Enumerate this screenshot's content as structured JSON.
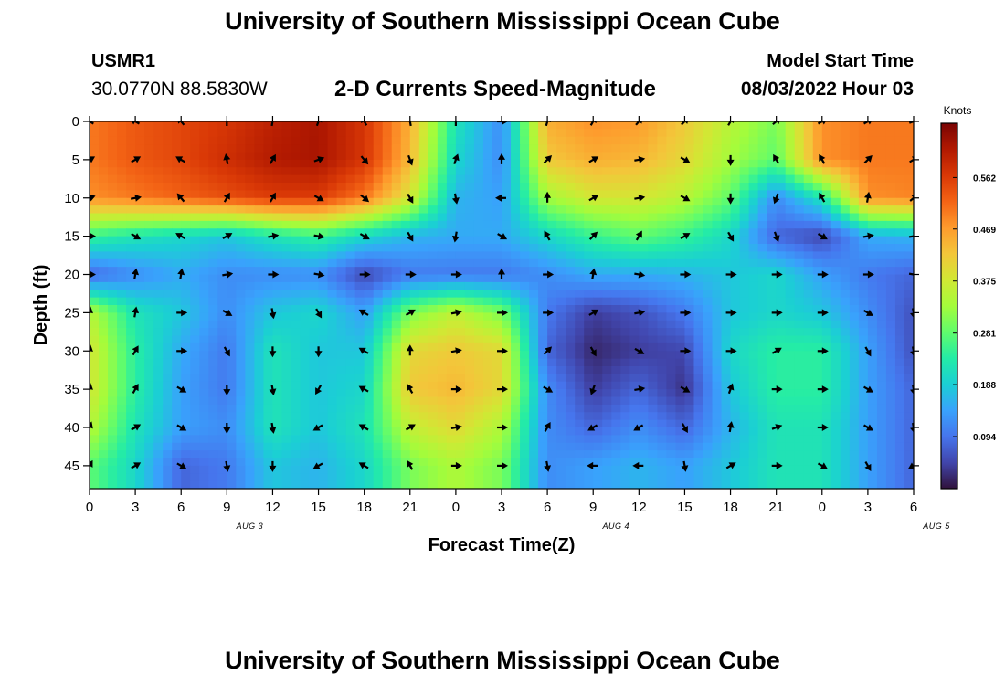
{
  "header": {
    "title": "University of Southern Mississippi Ocean Cube",
    "station_id": "USMR1",
    "coordinates": "30.0770N  88.5830W",
    "product": "2-D Currents Speed-Magnitude",
    "model_start_label": "Model Start Time",
    "model_start_value": "08/03/2022 Hour 03"
  },
  "footer": {
    "title": "University of Southern Mississippi Ocean Cube"
  },
  "chart_data": {
    "type": "heatmap",
    "xlabel": "Forecast Time(Z)",
    "ylabel": "Depth (ft)",
    "x_tick_labels": [
      "0",
      "3",
      "6",
      "9",
      "12",
      "15",
      "18",
      "21",
      "0",
      "3",
      "6",
      "9",
      "12",
      "15",
      "18",
      "21",
      "0",
      "3",
      "6"
    ],
    "x_day_labels": [
      {
        "label": "AUG 3",
        "tick_index": 3.5
      },
      {
        "label": "AUG 4",
        "tick_index": 11.5
      },
      {
        "label": "AUG 5",
        "tick_index": 18.5
      }
    ],
    "xlim": [
      0,
      18
    ],
    "y_ticks": [
      0,
      5,
      10,
      15,
      20,
      25,
      30,
      35,
      40,
      45
    ],
    "ylim": [
      0,
      48
    ],
    "y_inverted": true,
    "colorbar": {
      "title": "Knots",
      "ticks": [
        "0.094",
        "0.188",
        "0.281",
        "0.375",
        "0.469",
        "0.562"
      ],
      "range": [
        0,
        0.66
      ],
      "colors": [
        "#30123b",
        "#4145ab",
        "#4675ed",
        "#39a2fc",
        "#1bcfd4",
        "#24eca6",
        "#61fc6c",
        "#a4fc3b",
        "#d1e834",
        "#f3c63a",
        "#fe9b2d",
        "#f36315",
        "#d93806",
        "#b11901",
        "#7a0403"
      ]
    },
    "speed_grid_note": "rows = depth 0..45 ft step 5; columns = forecast steps 0..18 (3-hour steps)",
    "depths": [
      0,
      5,
      10,
      15,
      20,
      25,
      30,
      35,
      40,
      45
    ],
    "speed": [
      [
        0.5,
        0.53,
        0.55,
        0.57,
        0.6,
        0.62,
        0.57,
        0.45,
        0.22,
        0.12,
        0.45,
        0.48,
        0.47,
        0.42,
        0.35,
        0.3,
        0.48,
        0.5,
        0.5
      ],
      [
        0.5,
        0.53,
        0.55,
        0.58,
        0.61,
        0.62,
        0.57,
        0.44,
        0.2,
        0.12,
        0.42,
        0.45,
        0.44,
        0.4,
        0.33,
        0.28,
        0.48,
        0.5,
        0.5
      ],
      [
        0.48,
        0.5,
        0.52,
        0.54,
        0.56,
        0.56,
        0.5,
        0.38,
        0.16,
        0.14,
        0.33,
        0.38,
        0.38,
        0.35,
        0.28,
        0.12,
        0.22,
        0.48,
        0.49
      ],
      [
        0.25,
        0.22,
        0.2,
        0.18,
        0.22,
        0.25,
        0.2,
        0.16,
        0.15,
        0.15,
        0.2,
        0.25,
        0.28,
        0.25,
        0.2,
        0.08,
        0.05,
        0.15,
        0.16
      ],
      [
        0.08,
        0.12,
        0.15,
        0.12,
        0.12,
        0.12,
        0.05,
        0.1,
        0.1,
        0.1,
        0.12,
        0.15,
        0.15,
        0.16,
        0.18,
        0.2,
        0.14,
        0.1,
        0.08
      ],
      [
        0.35,
        0.22,
        0.18,
        0.12,
        0.18,
        0.2,
        0.14,
        0.3,
        0.36,
        0.3,
        0.1,
        0.04,
        0.06,
        0.1,
        0.18,
        0.2,
        0.18,
        0.12,
        0.06
      ],
      [
        0.38,
        0.24,
        0.15,
        0.1,
        0.22,
        0.18,
        0.18,
        0.4,
        0.42,
        0.4,
        0.08,
        0.02,
        0.04,
        0.05,
        0.2,
        0.24,
        0.24,
        0.14,
        0.06
      ],
      [
        0.38,
        0.24,
        0.14,
        0.1,
        0.22,
        0.18,
        0.2,
        0.42,
        0.44,
        0.4,
        0.12,
        0.04,
        0.08,
        0.03,
        0.18,
        0.24,
        0.24,
        0.14,
        0.08
      ],
      [
        0.35,
        0.22,
        0.14,
        0.12,
        0.22,
        0.18,
        0.22,
        0.36,
        0.4,
        0.34,
        0.12,
        0.08,
        0.12,
        0.08,
        0.16,
        0.22,
        0.22,
        0.14,
        0.08
      ],
      [
        0.28,
        0.2,
        0.08,
        0.1,
        0.18,
        0.16,
        0.2,
        0.3,
        0.34,
        0.3,
        0.12,
        0.14,
        0.16,
        0.14,
        0.18,
        0.22,
        0.22,
        0.14,
        0.08
      ]
    ],
    "arrow_direction_deg": [
      [
        300,
        300,
        320,
        0,
        10,
        20,
        330,
        350,
        0,
        90,
        15,
        30,
        40,
        45,
        30,
        50,
        60,
        60,
        70
      ],
      [
        60,
        60,
        300,
        350,
        30,
        70,
        140,
        160,
        20,
        0,
        45,
        60,
        80,
        120,
        180,
        330,
        330,
        45,
        60
      ],
      [
        70,
        80,
        320,
        30,
        30,
        120,
        130,
        150,
        170,
        270,
        0,
        60,
        80,
        120,
        180,
        200,
        330,
        10,
        50
      ],
      [
        90,
        120,
        300,
        60,
        80,
        100,
        120,
        150,
        190,
        120,
        330,
        45,
        30,
        60,
        150,
        160,
        120,
        80,
        80
      ],
      [
        90,
        10,
        10,
        80,
        90,
        100,
        90,
        90,
        90,
        0,
        90,
        10,
        100,
        90,
        90,
        90,
        90,
        90,
        100
      ],
      [
        10,
        10,
        90,
        120,
        170,
        150,
        300,
        60,
        80,
        90,
        90,
        60,
        80,
        90,
        90,
        90,
        90,
        120,
        170
      ],
      [
        10,
        30,
        90,
        150,
        180,
        180,
        300,
        0,
        80,
        90,
        45,
        150,
        120,
        90,
        90,
        60,
        90,
        150,
        170
      ],
      [
        10,
        30,
        120,
        180,
        170,
        210,
        300,
        330,
        90,
        90,
        120,
        200,
        80,
        120,
        20,
        90,
        90,
        120,
        170
      ],
      [
        20,
        60,
        120,
        180,
        170,
        240,
        300,
        60,
        80,
        90,
        30,
        240,
        240,
        150,
        10,
        70,
        90,
        120,
        170
      ],
      [
        30,
        60,
        120,
        170,
        180,
        240,
        300,
        330,
        90,
        90,
        170,
        270,
        270,
        170,
        60,
        90,
        120,
        150,
        240
      ]
    ]
  }
}
